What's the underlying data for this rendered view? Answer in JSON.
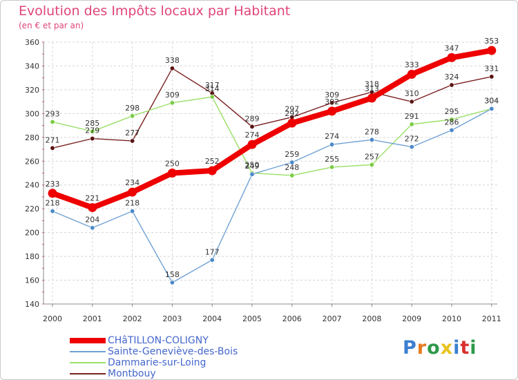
{
  "header": {
    "title": "Evolution des Impôts locaux par Habitant",
    "subtitle": "(en € et par an)"
  },
  "brand": {
    "text": "Proxiti",
    "letter_colors": [
      "#3b7fd0",
      "#e87a1e",
      "#2e9a4a",
      "#e8c21e",
      "#3b7fd0",
      "#d9302f",
      "#2e9a4a"
    ]
  },
  "colors": {
    "grid": "#d4d4d4",
    "axis": "#888888",
    "minor_tick": "#e0447a"
  },
  "chart_data": {
    "type": "line",
    "title": "Evolution des Impôts locaux par Habitant",
    "subtitle": "(en € et par an)",
    "xlabel": "",
    "ylabel": "",
    "categories": [
      "2000",
      "2001",
      "2002",
      "2003",
      "2004",
      "2005",
      "2006",
      "2007",
      "2008",
      "2009",
      "2010",
      "2011"
    ],
    "ylim": [
      140,
      360
    ],
    "yticks": [
      140,
      160,
      180,
      200,
      220,
      240,
      260,
      280,
      300,
      320,
      340,
      360
    ],
    "grid": true,
    "legend_position": "bottom-left",
    "series": [
      {
        "name": "Montbouy",
        "color": "#7a1f1f",
        "marker": "#5a1212",
        "weight": "thin",
        "values": [
          271,
          279,
          277,
          338,
          317,
          289,
          297,
          309,
          318,
          310,
          324,
          331
        ],
        "labels": [
          "271",
          "279",
          "277",
          "338",
          "317",
          "289",
          "297",
          "309",
          "318",
          "310",
          "324",
          "331"
        ]
      },
      {
        "name": "Dammarie-sur-Loing",
        "color": "#99e066",
        "marker": "#7acc44",
        "weight": "thin",
        "values": [
          293,
          285,
          298,
          309,
          314,
          250,
          248,
          255,
          257,
          291,
          295,
          304
        ],
        "labels": [
          "293",
          "285",
          "298",
          "309",
          "314",
          "250",
          "248",
          "255",
          "257",
          "291",
          "295",
          "304"
        ]
      },
      {
        "name": "Sainte-Geneviève-des-Bois",
        "color": "#6fa1d4",
        "marker": "#4a88c8",
        "weight": "thin",
        "values": [
          218,
          204,
          218,
          158,
          177,
          249,
          259,
          274,
          278,
          272,
          286,
          304
        ],
        "labels": [
          "218",
          "204",
          "218",
          "158",
          "177",
          "249",
          "259",
          "274",
          "278",
          "272",
          "286",
          "304"
        ]
      },
      {
        "name": "CHâTILLON-COLIGNY",
        "color": "#ee0000",
        "marker": "#ee0000",
        "weight": "thick",
        "values": [
          233,
          221,
          234,
          250,
          252,
          274,
          292,
          302,
          313,
          333,
          347,
          353
        ],
        "labels": [
          "233",
          "221",
          "234",
          "250",
          "252",
          "274",
          "292",
          "302",
          "313",
          "333",
          "347",
          "353"
        ]
      }
    ],
    "legend_order": [
      "CHâTILLON-COLIGNY",
      "Sainte-Geneviève-des-Bois",
      "Dammarie-sur-Loing",
      "Montbouy"
    ]
  }
}
